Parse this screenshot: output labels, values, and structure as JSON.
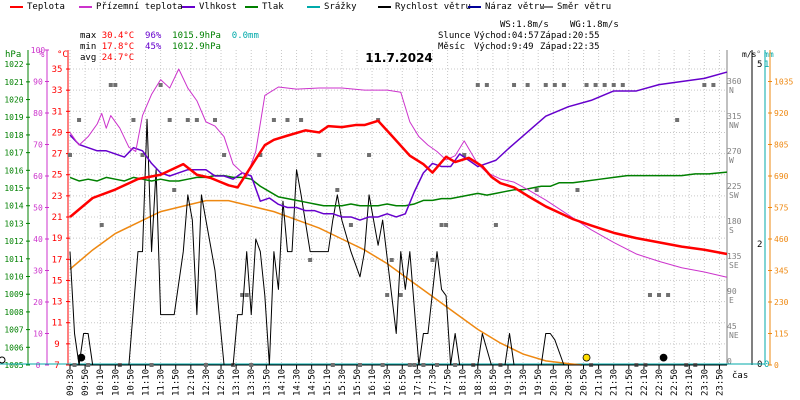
{
  "chart_data": {
    "type": "line",
    "title": "11.7.2024",
    "legend": [
      {
        "name": "Teplota",
        "color": "#ff0000"
      },
      {
        "name": "Přízemní teplota",
        "color": "#cc33cc"
      },
      {
        "name": "Vlhkost",
        "color": "#6600cc"
      },
      {
        "name": "Tlak",
        "color": "#008000"
      },
      {
        "name": "Srážky",
        "color": "#00aaaa"
      },
      {
        "name": "Rychlost větru",
        "color": "#000000"
      },
      {
        "name": "Náraz větru",
        "color": "#000099"
      },
      {
        "name": "Směr větru",
        "color": "#808080"
      }
    ],
    "stats": {
      "max_label": "max",
      "max_temp": "30.4°C",
      "max_hum": "96%",
      "max_press": "1015.9hPa",
      "precip": "0.0mm",
      "min_label": "min",
      "min_temp": "17.8°C",
      "min_hum": "45%",
      "min_press": "1012.9hPa",
      "avg_label": "avg",
      "avg_temp": "24.7°C"
    },
    "info": {
      "ws": "WS:1.8m/s",
      "wg": "WG:1.8m/s",
      "sun_label": "Slunce",
      "sunrise": "Východ:04:57",
      "sunset": "Západ:20:55",
      "moon_label": "Měsíc",
      "moonrise": "Východ:9:49",
      "moonset": "Západ:22:35"
    },
    "axes": {
      "hpa_label": "hPa",
      "hum_label": "%",
      "temp_label": "°C",
      "dir_label": "°",
      "ms_label": "m/s",
      "mm_label": "mm",
      "time_label": "čas",
      "hpa_ticks": [
        "1022",
        "1021",
        "1020",
        "1019",
        "1018",
        "1017",
        "1016",
        "1015",
        "1014",
        "1013",
        "1012",
        "1011",
        "1010",
        "1009",
        "1008",
        "1007",
        "1006",
        "1005"
      ],
      "hum_ticks": [
        "100",
        "90",
        "80",
        "70",
        "60",
        "50",
        "40",
        "30",
        "20",
        "10",
        "0"
      ],
      "temp_ticks": [
        "35",
        "33",
        "31",
        "29",
        "27",
        "25",
        "23",
        "21",
        "19",
        "17",
        "15",
        "13",
        "11",
        "9",
        "7"
      ],
      "dir_ticks": [
        {
          "deg": "360",
          "name": "N"
        },
        {
          "deg": "315",
          "name": "NW"
        },
        {
          "deg": "270",
          "name": "W"
        },
        {
          "deg": "225",
          "name": "SW"
        },
        {
          "deg": "180",
          "name": "S"
        },
        {
          "deg": "135",
          "name": "SE"
        },
        {
          "deg": "90",
          "name": "E"
        },
        {
          "deg": "45",
          "name": "NE"
        },
        {
          "deg": "0",
          "name": ""
        }
      ],
      "ms_top": "5",
      "ms_mid": "2",
      "ms_zero": "0",
      "mm_top": "1",
      "mm_zero": "0",
      "rad_ticks": [
        "1035",
        "920",
        "805",
        "690",
        "575",
        "460",
        "345",
        "230",
        "115",
        "0"
      ],
      "temp_range": [
        7,
        36.8
      ],
      "hum_range": [
        0,
        100
      ],
      "hpa_range": [
        1005,
        1022.8
      ],
      "wind_range": [
        0,
        5
      ],
      "rad_range": [
        0,
        1150
      ]
    },
    "x_ticks": [
      "09:30",
      "09:50",
      "10:10",
      "10:30",
      "10:50",
      "11:10",
      "11:30",
      "11:50",
      "12:10",
      "12:30",
      "12:50",
      "13:10",
      "13:30",
      "13:50",
      "14:10",
      "14:30",
      "14:50",
      "15:10",
      "15:30",
      "15:50",
      "16:10",
      "16:30",
      "16:50",
      "17:10",
      "17:30",
      "17:50",
      "18:10",
      "18:30",
      "18:50",
      "19:10",
      "19:30",
      "19:50",
      "20:10",
      "20:30",
      "20:50",
      "21:10",
      "21:30",
      "21:50",
      "22:10",
      "22:30",
      "22:50",
      "23:10",
      "23:30",
      "23:50"
    ],
    "x_range_hours": [
      9.5,
      24.0
    ],
    "series": [
      {
        "key": "teplota",
        "name": "Teplota",
        "axis": "temp",
        "color": "#ff0000",
        "width": 2.5,
        "x": [
          9.5,
          10.0,
          10.5,
          11.0,
          11.5,
          12.0,
          12.3,
          12.6,
          13.0,
          13.2,
          13.5,
          13.8,
          14.0,
          14.3,
          14.7,
          15.0,
          15.2,
          15.5,
          15.8,
          16.0,
          16.3,
          16.6,
          17.0,
          17.3,
          17.5,
          17.8,
          18.0,
          18.3,
          18.6,
          18.8,
          19.0,
          19.3,
          19.6,
          20.0,
          20.3,
          20.6,
          21.0,
          21.5,
          22.0,
          22.5,
          23.0,
          23.5,
          24.0
        ],
        "y": [
          21.0,
          22.8,
          23.6,
          24.6,
          25.0,
          26.0,
          25.0,
          24.7,
          24.0,
          23.8,
          25.8,
          27.8,
          28.3,
          28.7,
          29.2,
          29.0,
          29.6,
          29.5,
          29.7,
          29.7,
          30.1,
          28.7,
          26.8,
          26.0,
          25.2,
          26.7,
          26.2,
          26.6,
          25.8,
          24.8,
          24.2,
          23.8,
          23.0,
          22.0,
          21.4,
          20.8,
          20.2,
          19.5,
          19.0,
          18.6,
          18.2,
          17.9,
          17.5
        ]
      },
      {
        "key": "prizemni",
        "name": "Přízemní teplota",
        "axis": "temp",
        "color": "#cc33cc",
        "width": 1,
        "x": [
          9.5,
          9.7,
          9.9,
          10.1,
          10.2,
          10.3,
          10.4,
          10.6,
          10.8,
          10.95,
          11.1,
          11.3,
          11.5,
          11.7,
          11.9,
          12.1,
          12.3,
          12.5,
          12.7,
          12.9,
          13.1,
          13.4,
          13.6,
          13.8,
          14.1,
          14.5,
          15.0,
          15.5,
          16.0,
          16.5,
          16.8,
          17.0,
          17.2,
          17.4,
          17.6,
          17.8,
          18.0,
          18.2,
          18.5,
          18.7,
          19.0,
          19.3,
          19.6,
          20.0,
          20.5,
          21.0,
          21.5,
          22.0,
          22.5,
          23.0,
          23.5,
          24.0
        ],
        "y": [
          29.0,
          27.8,
          28.6,
          29.8,
          30.8,
          29.4,
          30.6,
          29.4,
          27.6,
          27.2,
          30.6,
          32.6,
          34.0,
          33.2,
          35.0,
          33.2,
          32.0,
          30.0,
          29.6,
          28.6,
          26.0,
          24.8,
          27.2,
          32.5,
          33.3,
          33.1,
          33.2,
          33.2,
          33.0,
          33.0,
          32.8,
          30.0,
          28.6,
          27.8,
          27.2,
          26.4,
          26.8,
          28.2,
          26.0,
          25.2,
          24.6,
          24.3,
          23.6,
          22.6,
          21.2,
          19.8,
          18.6,
          17.5,
          16.8,
          16.2,
          15.8,
          15.3
        ]
      },
      {
        "key": "vlhkost",
        "name": "Vlhkost",
        "axis": "hum",
        "color": "#6600cc",
        "width": 1.5,
        "x": [
          9.5,
          9.7,
          9.9,
          10.1,
          10.3,
          10.5,
          10.7,
          10.9,
          11.1,
          11.3,
          11.5,
          11.7,
          11.9,
          12.1,
          12.3,
          12.5,
          12.7,
          12.9,
          13.1,
          13.3,
          13.5,
          13.7,
          13.9,
          14.1,
          14.3,
          14.5,
          14.7,
          14.9,
          15.1,
          15.3,
          15.5,
          15.7,
          15.9,
          16.1,
          16.3,
          16.5,
          16.7,
          16.9,
          17.1,
          17.3,
          17.5,
          17.7,
          17.9,
          18.1,
          18.3,
          18.5,
          18.7,
          18.9,
          19.2,
          19.6,
          20.0,
          20.5,
          21.0,
          21.5,
          22.0,
          22.5,
          23.0,
          23.5,
          24.0
        ],
        "y": [
          73,
          70,
          69,
          68,
          68,
          67,
          66,
          69,
          68,
          64,
          61,
          60,
          61,
          62,
          62,
          62,
          60,
          60,
          59,
          61,
          60,
          52,
          53,
          51,
          50,
          50,
          49,
          49,
          48,
          48,
          47,
          47,
          46,
          47,
          47,
          48,
          47,
          48,
          55,
          61,
          64,
          63,
          63,
          67,
          65,
          63,
          64,
          65,
          69,
          74,
          79,
          82,
          84,
          87,
          87,
          89,
          90,
          91,
          93
        ]
      },
      {
        "key": "tlak",
        "name": "Tlak",
        "axis": "hpa",
        "color": "#008000",
        "width": 1.5,
        "x": [
          9.5,
          9.7,
          9.9,
          10.1,
          10.3,
          10.5,
          10.7,
          10.9,
          11.1,
          11.3,
          11.5,
          11.7,
          11.9,
          12.1,
          12.3,
          12.5,
          12.7,
          12.9,
          13.1,
          13.3,
          13.5,
          13.7,
          13.9,
          14.1,
          14.3,
          14.5,
          14.7,
          14.9,
          15.1,
          15.3,
          15.5,
          15.7,
          15.9,
          16.1,
          16.3,
          16.5,
          16.7,
          16.9,
          17.1,
          17.3,
          17.5,
          17.7,
          17.9,
          18.1,
          18.3,
          18.5,
          18.7,
          18.9,
          19.1,
          19.3,
          19.5,
          19.7,
          19.9,
          20.1,
          20.3,
          20.6,
          20.9,
          21.2,
          21.5,
          21.8,
          22.1,
          22.4,
          22.7,
          23.0,
          23.3,
          23.6,
          24.0
        ],
        "y": [
          1015.6,
          1015.4,
          1015.5,
          1015.4,
          1015.6,
          1015.5,
          1015.4,
          1015.6,
          1015.5,
          1015.4,
          1015.5,
          1015.4,
          1015.4,
          1015.5,
          1015.6,
          1015.6,
          1015.7,
          1015.7,
          1015.6,
          1015.6,
          1015.5,
          1015.1,
          1014.8,
          1014.5,
          1014.4,
          1014.3,
          1014.2,
          1014.1,
          1014.0,
          1014.0,
          1014.0,
          1014.1,
          1014.0,
          1014.0,
          1014.0,
          1014.1,
          1014.0,
          1014.0,
          1014.1,
          1014.3,
          1014.3,
          1014.4,
          1014.4,
          1014.5,
          1014.6,
          1014.7,
          1014.6,
          1014.7,
          1014.8,
          1014.9,
          1014.9,
          1015.0,
          1015.1,
          1015.1,
          1015.3,
          1015.3,
          1015.4,
          1015.5,
          1015.6,
          1015.7,
          1015.7,
          1015.7,
          1015.7,
          1015.7,
          1015.8,
          1015.8,
          1015.9
        ]
      },
      {
        "key": "rychlost",
        "name": "Rychlost větru",
        "axis": "wind",
        "color": "#000000",
        "width": 1,
        "x": [
          9.5,
          9.6,
          9.7,
          9.8,
          9.9,
          10.0,
          10.1,
          10.2,
          10.5,
          10.8,
          11.0,
          11.1,
          11.2,
          11.3,
          11.4,
          11.5,
          11.6,
          11.8,
          12.0,
          12.1,
          12.2,
          12.3,
          12.4,
          12.5,
          12.7,
          12.9,
          13.0,
          13.1,
          13.2,
          13.3,
          13.4,
          13.5,
          13.6,
          13.7,
          13.8,
          13.9,
          14.0,
          14.1,
          14.2,
          14.3,
          14.4,
          14.5,
          14.6,
          14.8,
          15.0,
          15.2,
          15.3,
          15.4,
          15.5,
          15.7,
          15.9,
          16.0,
          16.1,
          16.3,
          16.4,
          16.5,
          16.6,
          16.7,
          16.8,
          16.9,
          17.0,
          17.2,
          17.3,
          17.4,
          17.6,
          17.7,
          17.8,
          17.9,
          18.0,
          18.1,
          18.2,
          18.3,
          18.5,
          18.6,
          18.8,
          19.0,
          19.1,
          19.2,
          19.3,
          19.5,
          19.7,
          19.9,
          20.0,
          20.1,
          20.2,
          20.4,
          20.6,
          20.9,
          21.0,
          21.2,
          21.5,
          22.0,
          22.5,
          23.0,
          23.5,
          24.0
        ],
        "y": [
          1.8,
          0.5,
          0,
          0.5,
          0.5,
          0,
          0,
          0,
          0,
          0,
          1.8,
          1.8,
          3.9,
          1.8,
          3.1,
          0.8,
          0.8,
          0.8,
          1.8,
          2.7,
          2.3,
          0.8,
          2.7,
          2.3,
          1.5,
          0,
          0,
          0,
          0.8,
          0.8,
          1.8,
          0.8,
          2.0,
          1.8,
          1.1,
          0,
          1.8,
          1.2,
          2.6,
          1.8,
          1.8,
          3.1,
          2.7,
          1.8,
          1.8,
          1.8,
          2.3,
          2.7,
          2.3,
          1.8,
          1.4,
          1.8,
          2.7,
          1.9,
          2.3,
          1.7,
          1.1,
          0.5,
          1.8,
          1.2,
          1.8,
          0,
          0.5,
          0.5,
          1.8,
          1.2,
          1.1,
          0,
          0.5,
          0,
          0,
          0,
          0,
          0.5,
          0,
          0,
          0,
          0.5,
          0,
          0,
          0,
          0,
          0.5,
          0.5,
          0.4,
          0,
          0,
          0,
          0,
          0,
          0,
          0,
          0,
          0,
          0,
          0
        ]
      }
    ],
    "radiation": {
      "name": "Sluneční záření",
      "axis": "rad",
      "color": "#ee8811",
      "x": [
        9.5,
        10.0,
        10.5,
        11.0,
        11.5,
        12.0,
        12.5,
        13.0,
        13.5,
        14.0,
        14.5,
        15.0,
        15.5,
        16.0,
        16.5,
        17.0,
        17.5,
        18.0,
        18.5,
        19.0,
        19.5,
        20.0,
        20.5,
        20.8
      ],
      "y": [
        350,
        420,
        480,
        520,
        560,
        580,
        600,
        600,
        580,
        560,
        530,
        500,
        460,
        420,
        370,
        310,
        250,
        190,
        130,
        80,
        40,
        15,
        5,
        0
      ]
    },
    "direction_x": [
      9.5,
      9.6,
      9.7,
      9.9,
      10.2,
      10.4,
      10.5,
      10.6,
      10.9,
      11.1,
      11.3,
      11.5,
      11.7,
      11.8,
      12.1,
      12.3,
      12.5,
      12.7,
      12.9,
      13.1,
      13.3,
      13.4,
      13.5,
      13.7,
      14.0,
      14.3,
      14.6,
      14.8,
      15.0,
      15.3,
      15.4,
      15.7,
      15.9,
      16.1,
      16.3,
      16.4,
      16.5,
      16.6,
      16.8,
      17.0,
      17.1,
      17.3,
      17.5,
      17.6,
      17.7,
      17.8,
      18.0,
      18.2,
      18.4,
      18.5,
      18.7,
      18.9,
      19.0,
      19.3,
      19.6,
      19.8,
      20.0,
      20.2,
      20.4,
      20.7,
      20.9,
      21.0,
      21.1,
      21.3,
      21.5,
      21.7,
      22.0,
      22.2,
      22.3,
      22.5,
      22.7,
      22.9,
      23.1,
      23.3,
      23.5,
      23.7
    ],
    "direction_y": [
      270,
      0,
      315,
      0,
      180,
      360,
      360,
      0,
      315,
      270,
      0,
      360,
      315,
      225,
      315,
      315,
      0,
      315,
      270,
      0,
      90,
      90,
      0,
      270,
      315,
      315,
      315,
      135,
      270,
      0,
      225,
      180,
      0,
      270,
      315,
      0,
      90,
      135,
      90,
      0,
      0,
      0,
      135,
      0,
      180,
      180,
      0,
      270,
      0,
      360,
      360,
      180,
      0,
      360,
      360,
      225,
      360,
      360,
      360,
      225,
      360,
      0,
      360,
      360,
      360,
      360,
      0,
      0,
      90,
      90,
      90,
      315,
      0,
      0,
      360,
      360
    ],
    "markers": [
      {
        "name": "moon-marker",
        "x": 9.75,
        "axis": "wind",
        "y": 0.07,
        "color": "#000000"
      },
      {
        "name": "sunset-marker",
        "x": 20.9,
        "axis": "wind",
        "y": 0.07,
        "color": "#ffdd00"
      },
      {
        "name": "moonset-marker",
        "x": 22.6,
        "axis": "wind",
        "y": 0.07,
        "color": "#000000"
      }
    ]
  }
}
